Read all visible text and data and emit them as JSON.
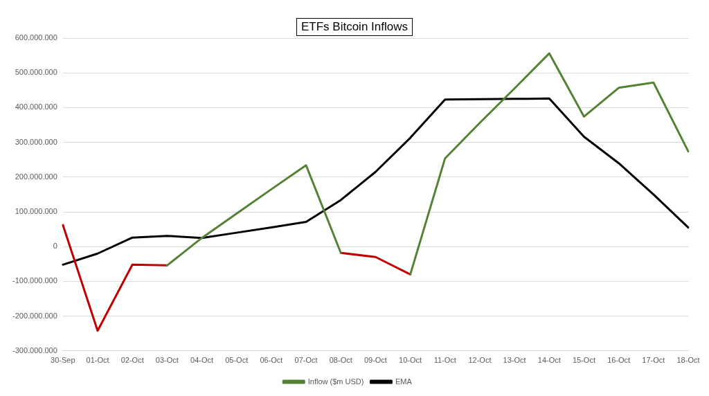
{
  "chart_data": {
    "type": "line",
    "title": "ETFs Bitcoin Inflows",
    "categories": [
      "30-Sep",
      "01-Oct",
      "02-Oct",
      "03-Oct",
      "04-Oct",
      "05-Oct",
      "06-Oct",
      "07-Oct",
      "08-Oct",
      "09-Oct",
      "10-Oct",
      "11-Oct",
      "12-Oct",
      "13-Oct",
      "14-Oct",
      "15-Oct",
      "16-Oct",
      "17-Oct",
      "18-Oct"
    ],
    "series": [
      {
        "name": "Inflow ($m USD)",
        "color": "#548235",
        "values": [
          null,
          null,
          null,
          -54000000,
          25000000,
          95000000,
          165000000,
          234000000,
          -18000000,
          null,
          -80000000,
          254000000,
          356000000,
          455000000,
          556000000,
          374000000,
          457000000,
          472000000,
          274000000
        ]
      },
      {
        "color": "#c00000",
        "values": [
          62000000,
          -242000000,
          -52000000,
          -54000000,
          null,
          null,
          null,
          null,
          -18000000,
          -30000000,
          -80000000,
          null,
          null,
          null,
          null,
          null,
          null,
          null,
          null
        ]
      },
      {
        "name": "EMA",
        "color": "#000000",
        "values": [
          -52000000,
          -20000000,
          26000000,
          31000000,
          25000000,
          40000000,
          55000000,
          71000000,
          134000000,
          215000000,
          313000000,
          423000000,
          424000000,
          425000000,
          426000000,
          316000000,
          240000000,
          150000000,
          55000000
        ]
      }
    ],
    "ylim": [
      -300000000,
      600000000
    ],
    "yticks": [
      {
        "value": -300000000,
        "label": "-300.000.000"
      },
      {
        "value": -200000000,
        "label": "-200.000.000"
      },
      {
        "value": -100000000,
        "label": "-100.000.000"
      },
      {
        "value": 0,
        "label": "0"
      },
      {
        "value": 100000000,
        "label": "100.000.000"
      },
      {
        "value": 200000000,
        "label": "200.000.000"
      },
      {
        "value": 300000000,
        "label": "300.000.000"
      },
      {
        "value": 400000000,
        "label": "400.000.000"
      },
      {
        "value": 500000000,
        "label": "500.000.000"
      },
      {
        "value": 600000000,
        "label": "600.000.000"
      }
    ],
    "grid": "y",
    "legend": "bottom",
    "marker": "none",
    "line_style": "solid"
  }
}
